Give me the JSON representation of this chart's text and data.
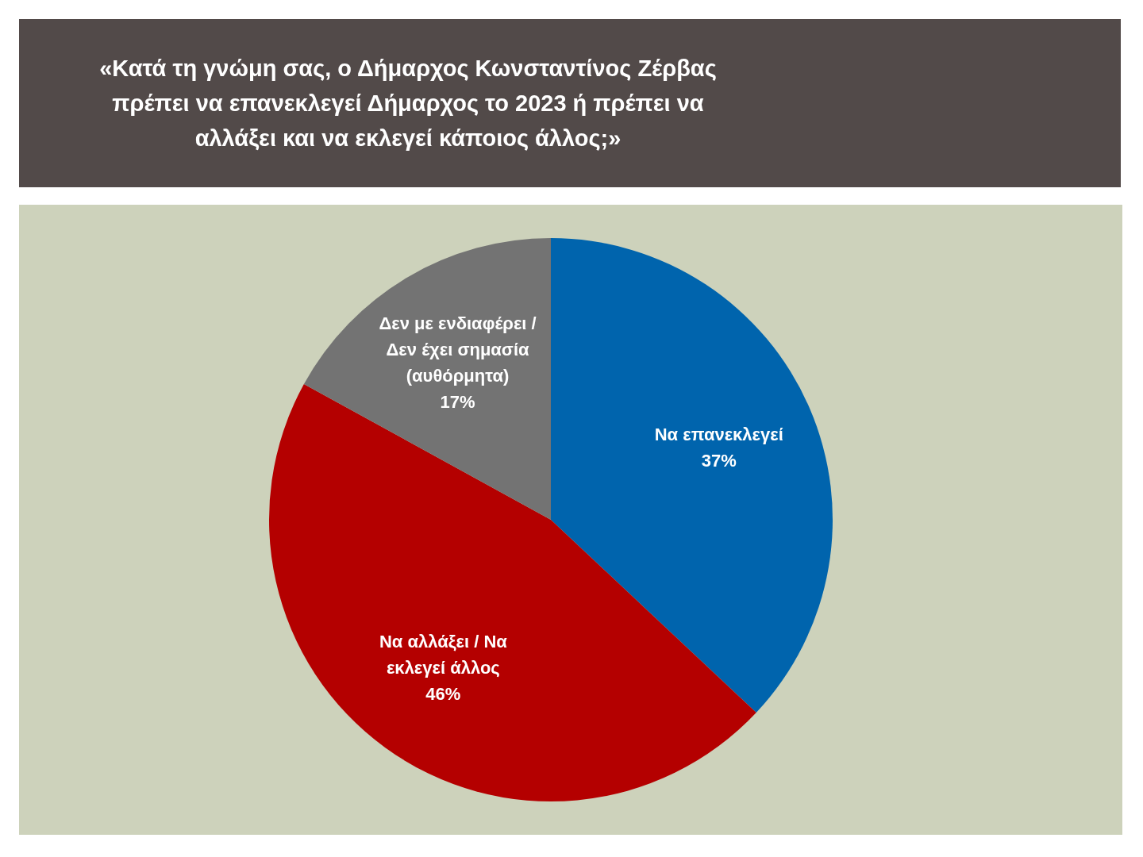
{
  "chart_data": {
    "type": "pie",
    "title": "«Κατά τη γνώμη σας, ο Δήμαρχος Κωνσταντίνος Ζέρβας πρέπει να επανεκλεγεί Δήμαρχος το 2023 ή πρέπει να αλλάξει και να εκλεγεί κάποιος άλλος;»",
    "categories": [
      "Να επανεκλεγεί",
      "Να αλλάξει / Να εκλεγεί άλλος",
      "Δεν με ενδιαφέρει / Δεν έχει σημασία (αυθόρμητα)"
    ],
    "values": [
      37,
      46,
      17
    ],
    "colors": [
      "#0064ad",
      "#b40000",
      "#737373"
    ],
    "value_labels": [
      "37%",
      "46%",
      "17%"
    ]
  }
}
